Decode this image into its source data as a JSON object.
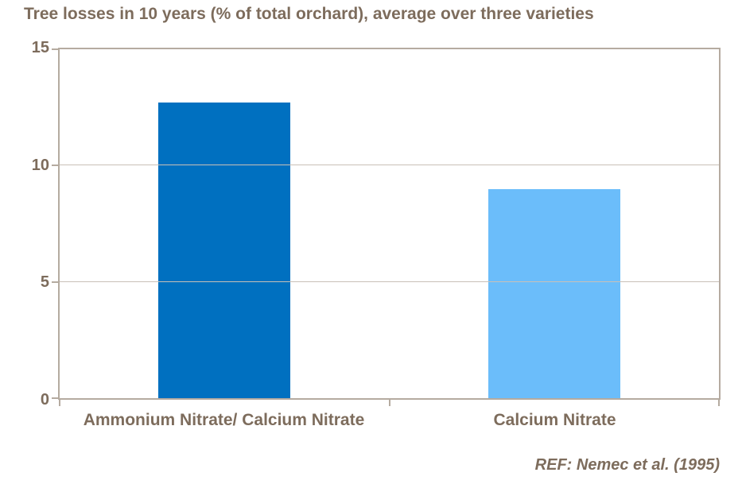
{
  "title": "Tree losses in 10 years (% of total orchard), average over three varieties",
  "ref_note": "REF: Nemec et al. (1995)",
  "colors": {
    "background": "#ffffff",
    "text": "#7d6c5c",
    "axis_border": "#b5aba0",
    "gridline": "#c9c0b7",
    "bar_ammonium_calcium": "#0070c0",
    "bar_calcium": "#6bbdfa"
  },
  "chart_data": {
    "type": "bar",
    "categories": [
      "Ammonium Nitrate/ Calcium Nitrate",
      "Calcium Nitrate"
    ],
    "values": [
      12.7,
      9.0
    ],
    "bar_colors": [
      "#0070c0",
      "#6bbdfa"
    ],
    "title": "Tree losses in 10 years (% of total orchard), average over three varieties",
    "xlabel": "",
    "ylabel": "",
    "ylim": [
      0,
      15
    ],
    "yticks": [
      0,
      5,
      10,
      15
    ],
    "grid": true,
    "legend": false,
    "annotation": "REF: Nemec et al. (1995)"
  }
}
